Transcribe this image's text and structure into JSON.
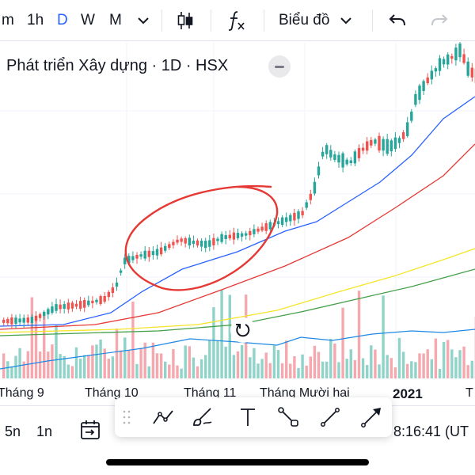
{
  "toolbar": {
    "intervals": [
      {
        "label": "m",
        "active": false
      },
      {
        "label": "1h",
        "active": false
      },
      {
        "label": "D",
        "active": true
      },
      {
        "label": "W",
        "active": false
      },
      {
        "label": "M",
        "active": false
      }
    ],
    "chart_type_icon": "candlestick-icon",
    "indicators_icon": "fx-icon",
    "layout_label": "Biểu đồ",
    "undo_icon": "undo-icon",
    "redo_icon": "redo-icon"
  },
  "legend": {
    "text": "Phát triển Xây dựng · 1D · HSX"
  },
  "chart": {
    "x_labels": [
      "Tháng 9",
      "Tháng 10",
      "Tháng 11",
      "Tháng Mười hai",
      "2021",
      "T"
    ],
    "colors": {
      "up": "#26a69a",
      "down": "#ef5350",
      "ma_blue": "#2962ff",
      "ma_red": "#e53935",
      "ma_yellow": "#f5e52a",
      "ma_green": "#43a047",
      "volume_ma": "#1e88e5",
      "annotation": "#e53935"
    }
  },
  "bottom": {
    "range_5n": "5n",
    "range_1n": "1n",
    "goto_date_icon": "calendar-arrow-icon",
    "time": "8:16:41 (UT"
  },
  "drawing_tools": [
    "trend-line-icon",
    "brush-icon",
    "text-icon",
    "ray-icon",
    "line-icon",
    "arrow-icon"
  ]
}
